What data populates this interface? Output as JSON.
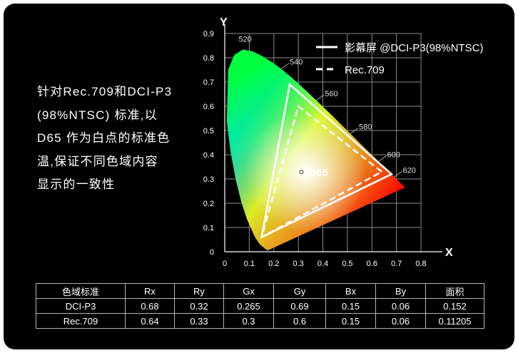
{
  "description": {
    "lines": [
      "针对Rec.709和DCI-P3",
      "(98%NTSC) 标准,以",
      "D65 作为白点的标准色",
      "温,保证不同色域内容",
      "显示的一致性"
    ]
  },
  "chart_data": {
    "type": "scatter",
    "xlabel": "X",
    "ylabel": "Y",
    "xlim": [
      0,
      0.8
    ],
    "ylim": [
      0,
      0.9
    ],
    "xticks": [
      "0",
      "0.1",
      "0.2",
      "0.3",
      "0.4",
      "0.5",
      "0.6",
      "0.7",
      "0.8"
    ],
    "yticks": [
      "0",
      "0.1",
      "0.2",
      "0.3",
      "0.4",
      "0.5",
      "0.6",
      "0.7",
      "0.8",
      "0.9"
    ],
    "grid": true,
    "legend_position": "top-right",
    "series": [
      {
        "name": "影幕屏 @DCI-P3(98%NTSC)",
        "style": "solid",
        "color": "#ffffff",
        "points": [
          [
            0.68,
            0.32
          ],
          [
            0.265,
            0.69
          ],
          [
            0.15,
            0.06
          ]
        ]
      },
      {
        "name": "Rec.709",
        "style": "dashed",
        "color": "#ffffff",
        "points": [
          [
            0.64,
            0.33
          ],
          [
            0.3,
            0.6
          ],
          [
            0.15,
            0.06
          ]
        ]
      }
    ],
    "white_point": {
      "label": "D65",
      "x": 0.3127,
      "y": 0.329
    },
    "wavelength_labels": [
      {
        "label": "520",
        "x": 0.074,
        "y": 0.834
      },
      {
        "label": "540",
        "x": 0.23,
        "y": 0.754
      },
      {
        "label": "560",
        "x": 0.373,
        "y": 0.624
      },
      {
        "label": "580",
        "x": 0.512,
        "y": 0.487
      },
      {
        "label": "600",
        "x": 0.627,
        "y": 0.372
      },
      {
        "label": "620",
        "x": 0.691,
        "y": 0.308
      }
    ],
    "spectral_locus": [
      [
        0.1741,
        0.005
      ],
      [
        0.144,
        0.0297
      ],
      [
        0.1241,
        0.0578
      ],
      [
        0.0913,
        0.1327
      ],
      [
        0.0687,
        0.2007
      ],
      [
        0.0454,
        0.295
      ],
      [
        0.0235,
        0.4127
      ],
      [
        0.0082,
        0.5384
      ],
      [
        0.0139,
        0.7502
      ],
      [
        0.0389,
        0.812
      ],
      [
        0.0743,
        0.8338
      ],
      [
        0.1142,
        0.8262
      ],
      [
        0.1547,
        0.8059
      ],
      [
        0.1929,
        0.7816
      ],
      [
        0.2296,
        0.7543
      ],
      [
        0.2658,
        0.7243
      ],
      [
        0.3016,
        0.6923
      ],
      [
        0.3373,
        0.6589
      ],
      [
        0.3731,
        0.6245
      ],
      [
        0.4087,
        0.5896
      ],
      [
        0.4441,
        0.5547
      ],
      [
        0.4788,
        0.5202
      ],
      [
        0.5125,
        0.4866
      ],
      [
        0.5448,
        0.4544
      ],
      [
        0.5752,
        0.4242
      ],
      [
        0.6029,
        0.3965
      ],
      [
        0.627,
        0.3725
      ],
      [
        0.6482,
        0.3514
      ],
      [
        0.6658,
        0.334
      ],
      [
        0.6801,
        0.3197
      ],
      [
        0.6915,
        0.3083
      ],
      [
        0.7006,
        0.2993
      ],
      [
        0.7079,
        0.292
      ],
      [
        0.714,
        0.2859
      ],
      [
        0.719,
        0.2809
      ],
      [
        0.7347,
        0.2653
      ]
    ]
  },
  "table": {
    "headers": [
      "色域标准",
      "Rx",
      "Ry",
      "Gx",
      "Gy",
      "Bx",
      "By",
      "面积"
    ],
    "rows": [
      [
        "DCI-P3",
        "0.68",
        "0.32",
        "0.265",
        "0.69",
        "0.15",
        "0.06",
        "0.152"
      ],
      [
        "Rec.709",
        "0.64",
        "0.33",
        "0.3",
        "0.6",
        "0.15",
        "0.06",
        "0.11205"
      ]
    ]
  }
}
